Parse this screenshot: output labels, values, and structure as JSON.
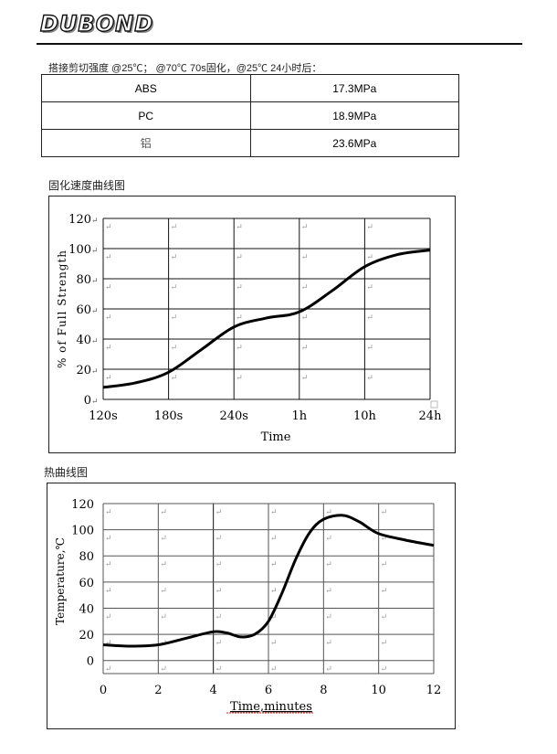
{
  "header": {
    "logo_text": "DUBOND"
  },
  "table": {
    "caption": "搭接剪切强度 @25℃； @70℃ 70s固化，@25℃ 24小时后：",
    "rows": [
      {
        "material": "ABS",
        "value": "17.3MPa"
      },
      {
        "material": "PC",
        "value": "18.9MPa"
      },
      {
        "material": "铝",
        "value": "23.6MPa"
      }
    ]
  },
  "chart_data": [
    {
      "type": "line",
      "section_title": "固化速度曲线图",
      "title": "",
      "xlabel": "Time",
      "ylabel": "% of Full Strength",
      "categories": [
        "120s",
        "180s",
        "240s",
        "1h",
        "10h",
        "24h"
      ],
      "ylim": [
        0,
        120
      ],
      "yticks": [
        "0",
        "20",
        "40",
        "60",
        "80",
        "100",
        "120"
      ],
      "grid": true,
      "series": [
        {
          "name": "Strength",
          "x": [
            0,
            0.5,
            1,
            1.5,
            2,
            2.5,
            3,
            3.5,
            4,
            4.5,
            5
          ],
          "values": [
            8,
            11,
            18,
            33,
            48,
            54,
            58,
            72,
            88,
            96,
            99
          ]
        }
      ]
    },
    {
      "type": "line",
      "section_title": "热曲线图",
      "title": "",
      "xlabel": "Time,minutes",
      "ylabel": "Temperature,℃",
      "xlim": [
        0,
        12
      ],
      "xticks": [
        "0",
        "2",
        "4",
        "6",
        "8",
        "10",
        "12"
      ],
      "ylim": [
        -10,
        120
      ],
      "yticks": [
        "0",
        "20",
        "40",
        "60",
        "80",
        "100",
        "120"
      ],
      "grid": true,
      "series": [
        {
          "name": "Temperature",
          "x": [
            0,
            1,
            2,
            3,
            4,
            4.5,
            5,
            5.5,
            6,
            6.5,
            7,
            7.5,
            8,
            8.7,
            9.3,
            10,
            11,
            12
          ],
          "values": [
            12,
            11,
            12,
            17,
            22,
            21,
            18,
            20,
            30,
            52,
            78,
            98,
            108,
            111,
            106,
            97,
            92,
            88
          ]
        }
      ]
    }
  ]
}
